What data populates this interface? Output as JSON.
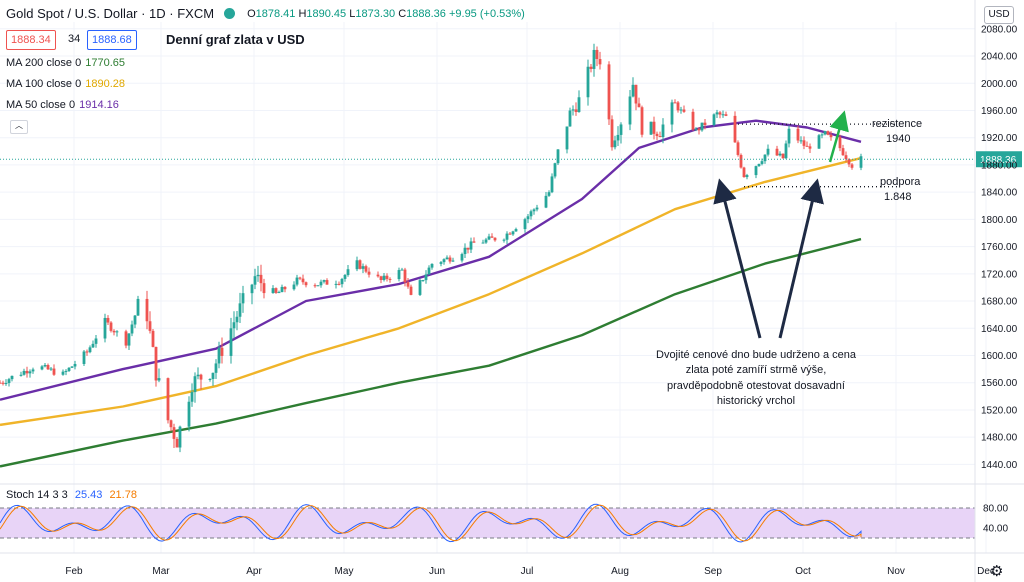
{
  "header": {
    "symbol": "Gold Spot / U.S. Dollar · 1D · FXCM",
    "ohlc_prefix_o": "O",
    "open": "1878.41",
    "ohlc_prefix_h": "H",
    "high": "1890.45",
    "ohlc_prefix_l": "L",
    "low": "1873.30",
    "ohlc_prefix_c": "C",
    "close": "1888.36",
    "change": "+9.95 (+0.53%)",
    "bid": "1888.34",
    "spread": "34",
    "ask": "1888.68",
    "chart_title": "Denní graf zlata v USD",
    "currency": "USD",
    "bid_color": "#ef5350",
    "ask_color": "#2962ff"
  },
  "indicators": {
    "ma200_label": "MA 200 close 0",
    "ma200_value": "1770.65",
    "ma200_color": "#26a69a",
    "ma100_label": "MA 100 close 0",
    "ma100_value": "1890.28",
    "ma100_color": "#f0b429",
    "ma50_label": "MA 50 close 0",
    "ma50_value": "1914.16",
    "ma50_color": "#6a2ea8",
    "stoch_label": "Stoch 14 3 3",
    "stoch_k": "25.43",
    "stoch_d": "21.78"
  },
  "annotations": {
    "resistance_label": "rezistence",
    "resistance_value": "1940",
    "support_label": "podpora",
    "support_value": "1.848",
    "note_lines": [
      "Dvojité cenové dno bude udrženo a cena",
      "zlata poté zamíří strmě výše,",
      "pravděpodobně otestovat dosavadní",
      "historický vrchol"
    ],
    "current_price_tag": "1888.36"
  },
  "chart_data": {
    "type": "candlestick",
    "title": "Denní graf zlata v USD",
    "xlabel": "",
    "ylabel": "",
    "x_ticks": [
      "Feb",
      "Mar",
      "Apr",
      "May",
      "Jun",
      "Jul",
      "Aug",
      "Sep",
      "Oct",
      "Nov",
      "Dec"
    ],
    "y_ticks": [
      1440,
      1480,
      1520,
      1560,
      1600,
      1640,
      1680,
      1720,
      1760,
      1800,
      1840,
      1880,
      1920,
      1960,
      2000,
      2040,
      2080
    ],
    "ylim": [
      1420,
      2090
    ],
    "close_series": [
      [
        "2020-01-20",
        1560
      ],
      [
        "2020-02-01",
        1585
      ],
      [
        "2020-02-10",
        1572
      ],
      [
        "2020-02-18",
        1605
      ],
      [
        "2020-02-24",
        1650
      ],
      [
        "2020-03-02",
        1620
      ],
      [
        "2020-03-06",
        1672
      ],
      [
        "2020-03-09",
        1660
      ],
      [
        "2020-03-12",
        1575
      ],
      [
        "2020-03-16",
        1505
      ],
      [
        "2020-03-19",
        1475
      ],
      [
        "2020-03-24",
        1560
      ],
      [
        "2020-03-31",
        1580
      ],
      [
        "2020-04-07",
        1650
      ],
      [
        "2020-04-14",
        1715
      ],
      [
        "2020-04-21",
        1690
      ],
      [
        "2020-04-28",
        1710
      ],
      [
        "2020-05-05",
        1705
      ],
      [
        "2020-05-12",
        1710
      ],
      [
        "2020-05-18",
        1735
      ],
      [
        "2020-05-26",
        1710
      ],
      [
        "2020-06-02",
        1725
      ],
      [
        "2020-06-05",
        1685
      ],
      [
        "2020-06-12",
        1735
      ],
      [
        "2020-06-19",
        1745
      ],
      [
        "2020-06-26",
        1765
      ],
      [
        "2020-07-06",
        1775
      ],
      [
        "2020-07-14",
        1805
      ],
      [
        "2020-07-21",
        1840
      ],
      [
        "2020-07-24",
        1900
      ],
      [
        "2020-07-28",
        1955
      ],
      [
        "2020-07-31",
        1975
      ],
      [
        "2020-08-05",
        2040
      ],
      [
        "2020-08-07",
        2035
      ],
      [
        "2020-08-11",
        1915
      ],
      [
        "2020-08-14",
        1945
      ],
      [
        "2020-08-18",
        2000
      ],
      [
        "2020-08-21",
        1935
      ],
      [
        "2020-08-27",
        1930
      ],
      [
        "2020-09-01",
        1970
      ],
      [
        "2020-09-08",
        1930
      ],
      [
        "2020-09-15",
        1955
      ],
      [
        "2020-09-18",
        1950
      ],
      [
        "2020-09-21",
        1910
      ],
      [
        "2020-09-24",
        1865
      ],
      [
        "2020-09-28",
        1880
      ],
      [
        "2020-10-02",
        1900
      ],
      [
        "2020-10-07",
        1890
      ],
      [
        "2020-10-09",
        1930
      ],
      [
        "2020-10-15",
        1905
      ],
      [
        "2020-10-21",
        1925
      ],
      [
        "2020-10-26",
        1905
      ],
      [
        "2020-10-30",
        1880
      ],
      [
        "2020-11-02",
        1888.36
      ]
    ],
    "moving_averages": [
      {
        "name": "MA 50",
        "points": [
          [
            "2020-01-20",
            1535
          ],
          [
            "2020-03-01",
            1580
          ],
          [
            "2020-04-01",
            1610
          ],
          [
            "2020-05-01",
            1680
          ],
          [
            "2020-06-01",
            1705
          ],
          [
            "2020-07-01",
            1745
          ],
          [
            "2020-08-01",
            1830
          ],
          [
            "2020-08-20",
            1905
          ],
          [
            "2020-09-10",
            1935
          ],
          [
            "2020-09-28",
            1945
          ],
          [
            "2020-10-15",
            1935
          ],
          [
            "2020-11-02",
            1914
          ]
        ]
      },
      {
        "name": "MA 100",
        "points": [
          [
            "2020-01-20",
            1498
          ],
          [
            "2020-03-01",
            1525
          ],
          [
            "2020-04-01",
            1555
          ],
          [
            "2020-05-01",
            1600
          ],
          [
            "2020-06-01",
            1640
          ],
          [
            "2020-07-01",
            1690
          ],
          [
            "2020-08-01",
            1750
          ],
          [
            "2020-09-01",
            1815
          ],
          [
            "2020-10-01",
            1855
          ],
          [
            "2020-11-02",
            1890
          ]
        ]
      },
      {
        "name": "MA 200",
        "points": [
          [
            "2020-01-20",
            1437
          ],
          [
            "2020-03-01",
            1475
          ],
          [
            "2020-04-01",
            1500
          ],
          [
            "2020-05-01",
            1530
          ],
          [
            "2020-06-01",
            1560
          ],
          [
            "2020-07-01",
            1585
          ],
          [
            "2020-08-01",
            1630
          ],
          [
            "2020-09-01",
            1690
          ],
          [
            "2020-10-01",
            1735
          ],
          [
            "2020-11-02",
            1771
          ]
        ]
      }
    ],
    "resistance": 1940,
    "support": 1848,
    "stochastic": {
      "overbought": 80,
      "oversold": 20,
      "y_ticks": [
        40,
        80
      ],
      "k_last": 25.43,
      "d_last": 21.78
    }
  }
}
